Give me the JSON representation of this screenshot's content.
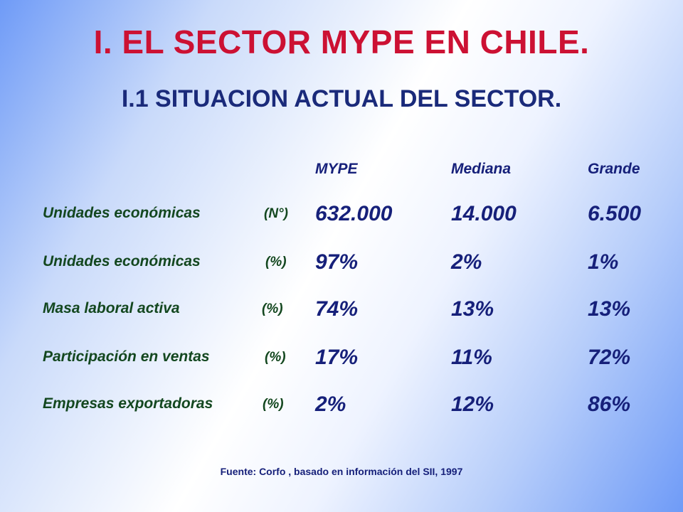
{
  "slide": {
    "title": "I. EL SECTOR MYPE EN CHILE.",
    "subtitle": "I.1 SITUACION ACTUAL DEL SECTOR.",
    "columns": [
      "MYPE",
      "Mediana",
      "Grande"
    ],
    "rows": [
      {
        "label": "Unidades económicas",
        "unit": "(N°)",
        "values": [
          "632.000",
          "14.000",
          "6.500"
        ]
      },
      {
        "label": "Unidades económicas",
        "unit": "(%)",
        "values": [
          "97%",
          "2%",
          "1%"
        ]
      },
      {
        "label": "Masa laboral activa",
        "unit": "(%)",
        "values": [
          "74%",
          "13%",
          "13%"
        ]
      },
      {
        "label": "Participación en ventas",
        "unit": "(%)",
        "values": [
          "17%",
          "11%",
          "72%"
        ]
      },
      {
        "label": "Empresas exportadoras",
        "unit": "(%)",
        "values": [
          "2%",
          "12%",
          "86%"
        ]
      }
    ],
    "source": "Fuente: Corfo , basado en información del SII, 1997"
  },
  "colors": {
    "title": "#cc1133",
    "subtitle": "#1a2a7a",
    "label": "#13471f",
    "value": "#16207a",
    "background_edge": "#6f9bf7"
  }
}
